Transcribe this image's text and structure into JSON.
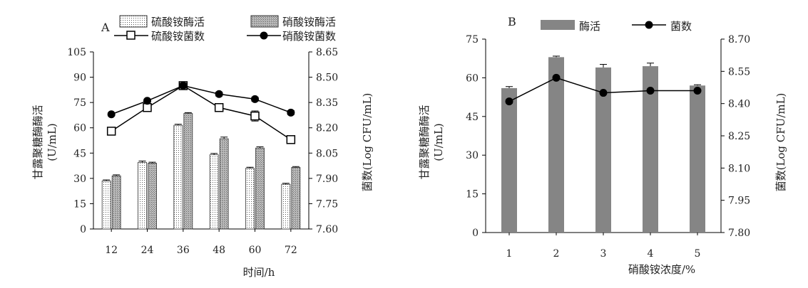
{
  "chart_data": [
    {
      "panel": "A",
      "type": "bar",
      "categories": [
        "12",
        "24",
        "36",
        "48",
        "60",
        "72"
      ],
      "xlabel": "时间/h",
      "ylabel_left": [
        "甘露聚糖酶酶活",
        "(U/mL)"
      ],
      "ylabel_right": "菌数(Log CFU/mL)",
      "ylim_left": [
        0,
        105
      ],
      "yticks_left": [
        "0",
        "15",
        "30",
        "45",
        "60",
        "75",
        "90",
        "105"
      ],
      "ylim_right": [
        7.6,
        8.65
      ],
      "yticks_right": [
        "7.60",
        "7.75",
        "7.90",
        "8.05",
        "8.20",
        "8.35",
        "8.50",
        "8.65"
      ],
      "series": [
        {
          "name": "硫酸铵酶活",
          "kind": "bar",
          "axis": "left",
          "pattern": "dots",
          "values": [
            28.5,
            39.5,
            61.5,
            44,
            36,
            26.5
          ],
          "err": [
            0.6,
            0.8,
            0.6,
            0.8,
            0.6,
            0.6
          ]
        },
        {
          "name": "硝酸铵酶活",
          "kind": "bar",
          "axis": "left",
          "pattern": "hatch",
          "values": [
            31.5,
            39,
            68.5,
            53.5,
            48,
            36.5
          ],
          "err": [
            0.6,
            0.6,
            0.5,
            1.0,
            0.7,
            0.5
          ]
        },
        {
          "name": "硫酸铵菌数",
          "kind": "line",
          "axis": "right",
          "marker": "open-square",
          "values": [
            8.18,
            8.32,
            8.45,
            8.32,
            8.27,
            8.13
          ],
          "err": [
            0.02,
            0.02,
            0.02,
            0.02,
            0.03,
            0.02
          ]
        },
        {
          "name": "硝酸铵菌数",
          "kind": "line",
          "axis": "right",
          "marker": "filled-circle",
          "values": [
            8.28,
            8.36,
            8.45,
            8.4,
            8.37,
            8.29
          ],
          "err": [
            0.01,
            0.01,
            0.015,
            0.012,
            0.012,
            0.012
          ]
        }
      ]
    },
    {
      "panel": "B",
      "type": "bar",
      "categories": [
        "1",
        "2",
        "3",
        "4",
        "5"
      ],
      "xlabel": "硝酸铵浓度/%",
      "ylabel_left": [
        "甘露聚糖酶酶活",
        "(U/mL)"
      ],
      "ylabel_right": "菌数(Log CFU/mL)",
      "ylim_left": [
        0,
        75
      ],
      "yticks_left": [
        "0",
        "15",
        "30",
        "45",
        "60",
        "75"
      ],
      "ylim_right": [
        7.8,
        8.7
      ],
      "yticks_right": [
        "7.80",
        "7.95",
        "8.10",
        "8.25",
        "8.40",
        "8.55",
        "8.70"
      ],
      "series": [
        {
          "name": "酶活",
          "kind": "bar",
          "axis": "left",
          "color": "#858585",
          "values": [
            56,
            68,
            64,
            64.5,
            57
          ],
          "err": [
            0.6,
            0.4,
            1.2,
            1.2,
            0.3
          ]
        },
        {
          "name": "菌数",
          "kind": "line",
          "axis": "right",
          "marker": "filled-circle",
          "values": [
            8.41,
            8.52,
            8.45,
            8.46,
            8.46
          ],
          "err": [
            0.008,
            0.008,
            0.006,
            0.006,
            0.006
          ]
        }
      ]
    }
  ]
}
